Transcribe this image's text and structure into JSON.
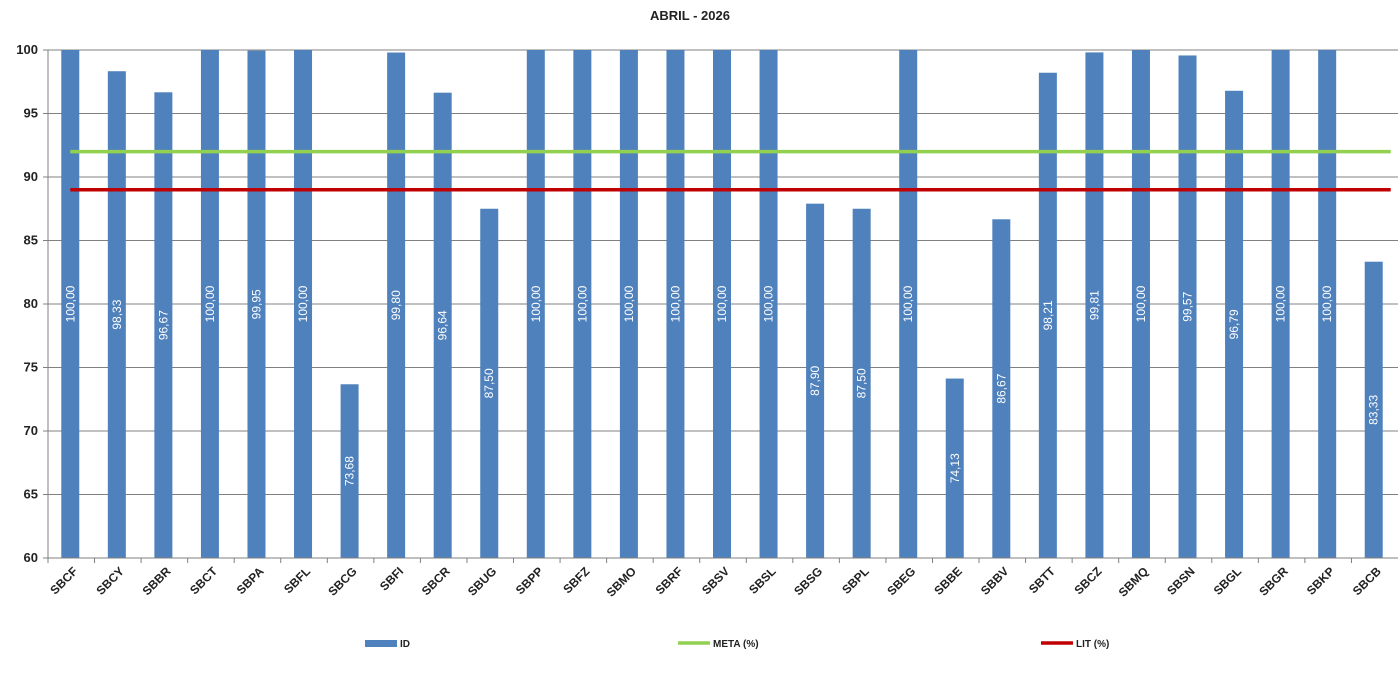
{
  "chart_data": {
    "type": "bar",
    "title": "ABRIL - 2026",
    "xlabel": "",
    "ylabel": "",
    "ylim": [
      60,
      100
    ],
    "yticks": [
      "60",
      "65",
      "70",
      "75",
      "80",
      "85",
      "90",
      "95",
      "100"
    ],
    "grid": true,
    "legend_position": "bottom",
    "categories": [
      "SBCF",
      "SBCY",
      "SBBR",
      "SBCT",
      "SBPA",
      "SBFL",
      "SBCG",
      "SBFI",
      "SBCR",
      "SBUG",
      "SBPP",
      "SBFZ",
      "SBMO",
      "SBRF",
      "SBSV",
      "SBSL",
      "SBSG",
      "SBPL",
      "SBEG",
      "SBBE",
      "SBBV",
      "SBTT",
      "SBCZ",
      "SBMQ",
      "SBSN",
      "SBGL",
      "SBGR",
      "SBKP",
      "SBCB"
    ],
    "series": [
      {
        "name": "ID",
        "type": "bar",
        "color": "#4f81bd",
        "values": [
          100.0,
          98.33,
          96.67,
          100.0,
          99.95,
          100.0,
          73.68,
          99.8,
          96.64,
          87.5,
          100.0,
          100.0,
          100.0,
          100.0,
          100.0,
          100.0,
          87.9,
          87.5,
          100.0,
          74.13,
          86.67,
          98.21,
          99.81,
          100.0,
          99.57,
          96.79,
          100.0,
          100.0,
          83.33
        ],
        "labels": [
          "100,00",
          "98,33",
          "96,67",
          "100,00",
          "99,95",
          "100,00",
          "73,68",
          "99,80",
          "96,64",
          "87,50",
          "100,00",
          "100,00",
          "100,00",
          "100,00",
          "100,00",
          "100,00",
          "87,90",
          "87,50",
          "100,00",
          "74,13",
          "86,67",
          "98,21",
          "99,81",
          "100,00",
          "99,57",
          "96,79",
          "100,00",
          "100,00",
          "83,33"
        ]
      },
      {
        "name": "META (%)",
        "type": "line",
        "color": "#92d050",
        "value": 92
      },
      {
        "name": "LIT (%)",
        "type": "line",
        "color": "#c00000",
        "value": 89
      }
    ]
  }
}
